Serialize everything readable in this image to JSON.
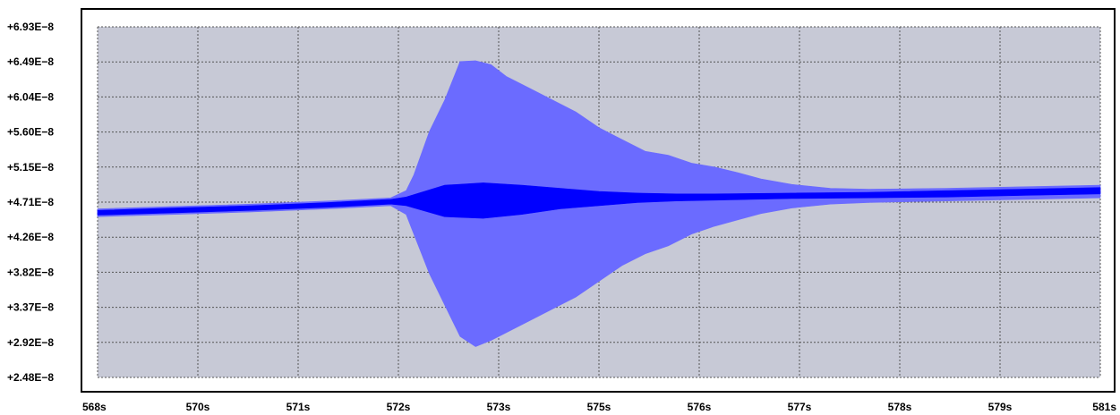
{
  "chart_data": {
    "type": "area",
    "title": "",
    "xlabel": "",
    "ylabel": "",
    "x_ticks": [
      "568s",
      "570s",
      "571s",
      "572s",
      "573s",
      "575s",
      "576s",
      "577s",
      "578s",
      "579s",
      "581s"
    ],
    "y_ticks": [
      "+6.93E−8",
      "+6.49E−8",
      "+6.04E−8",
      "+5.60E−8",
      "+5.15E−8",
      "+4.71E−8",
      "+4.26E−8",
      "+3.82E−8",
      "+3.37E−8",
      "+2.92E−8",
      "+2.48E−8"
    ],
    "xlim": [
      568,
      581
    ],
    "ylim": [
      2.48e-08,
      6.93e-08
    ],
    "grid": true,
    "series": [
      {
        "role": "envelope",
        "color": "#6b6bff",
        "x": [
          568.0,
          569.0,
          570.0,
          571.0,
          571.8,
          572.0,
          572.1,
          572.3,
          572.5,
          572.7,
          572.9,
          573.1,
          573.3,
          573.6,
          573.9,
          574.2,
          574.5,
          574.8,
          575.1,
          575.4,
          575.7,
          576.0,
          576.3,
          576.6,
          577.0,
          577.5,
          578.0,
          579.0,
          580.0,
          581.0
        ],
        "upper": [
          4.62e-08,
          4.65e-08,
          4.68e-08,
          4.72e-08,
          4.76e-08,
          4.85e-08,
          5.05e-08,
          5.6e-08,
          6e-08,
          6.49e-08,
          6.5e-08,
          6.45e-08,
          6.3e-08,
          6.15e-08,
          6e-08,
          5.85e-08,
          5.65e-08,
          5.5e-08,
          5.35e-08,
          5.3e-08,
          5.2e-08,
          5.15e-08,
          5.08e-08,
          5e-08,
          4.93e-08,
          4.88e-08,
          4.87e-08,
          4.88e-08,
          4.9e-08,
          4.92e-08
        ],
        "lower": [
          4.52e-08,
          4.55e-08,
          4.58e-08,
          4.62e-08,
          4.66e-08,
          4.55e-08,
          4.3e-08,
          3.8e-08,
          3.4e-08,
          3e-08,
          2.87e-08,
          2.95e-08,
          3.05e-08,
          3.2e-08,
          3.35e-08,
          3.5e-08,
          3.7e-08,
          3.9e-08,
          4.05e-08,
          4.15e-08,
          4.3e-08,
          4.4e-08,
          4.48e-08,
          4.56e-08,
          4.63e-08,
          4.68e-08,
          4.7e-08,
          4.72e-08,
          4.74e-08,
          4.76e-08
        ]
      },
      {
        "role": "waveform",
        "color": "#0000ff",
        "x": [
          568.0,
          569.0,
          570.0,
          571.0,
          571.8,
          572.0,
          572.5,
          573.0,
          573.5,
          574.0,
          574.5,
          575.0,
          575.5,
          576.0,
          577.0,
          578.0,
          579.0,
          580.0,
          581.0
        ],
        "upper": [
          4.6e-08,
          4.63e-08,
          4.66e-08,
          4.7e-08,
          4.74e-08,
          4.77e-08,
          4.92e-08,
          4.95e-08,
          4.92e-08,
          4.88e-08,
          4.84e-08,
          4.82e-08,
          4.81e-08,
          4.81e-08,
          4.82e-08,
          4.83e-08,
          4.85e-08,
          4.87e-08,
          4.89e-08
        ],
        "lower": [
          4.54e-08,
          4.57e-08,
          4.6e-08,
          4.64e-08,
          4.68e-08,
          4.66e-08,
          4.52e-08,
          4.5e-08,
          4.55e-08,
          4.62e-08,
          4.66e-08,
          4.7e-08,
          4.72e-08,
          4.73e-08,
          4.75e-08,
          4.76e-08,
          4.77e-08,
          4.79e-08,
          4.81e-08
        ]
      }
    ],
    "colors": {
      "plot_background": "#c7c9d6",
      "grid": "#555555",
      "frame": "#000000"
    }
  }
}
